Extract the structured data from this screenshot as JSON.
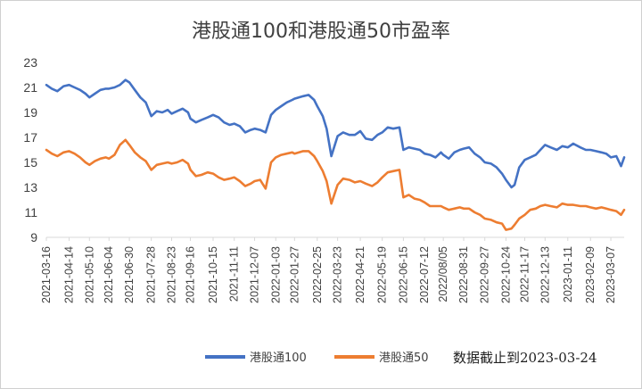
{
  "chart_data": {
    "type": "line",
    "title": "港股通100和港股通50市盈率",
    "xlabel": "",
    "ylabel": "",
    "ylim": [
      9,
      23
    ],
    "yticks": [
      9,
      11,
      13,
      15,
      17,
      19,
      21,
      23
    ],
    "grid": false,
    "legend_position": "bottom",
    "note": "数据截止到2023-03-24",
    "x_tick_labels": [
      "2021-03-16",
      "2021-04-14",
      "2021-05-10",
      "2021-06-04",
      "2021-06-30",
      "2021-07-28",
      "2021-08-23",
      "2021-09-16",
      "2021-10-15",
      "2021-11-11",
      "2021-12-07",
      "2022-01-03",
      "2022-01-27",
      "2022-02-25",
      "2022-03-23",
      "2022-04-21",
      "2022-05-19",
      "2022-06-15",
      "2022-07-12",
      "2022/08/05",
      "2022-08-31",
      "2022-09-27",
      "2022-10-24",
      "2022-11-17",
      "2022-12-13",
      "2023-01-11",
      "2023-02-09",
      "2023-03-07"
    ],
    "series": [
      {
        "name": "港股通100",
        "color": "#4472C4",
        "x": [
          "2021-03-16",
          "2021-03-23",
          "2021-03-30",
          "2021-04-07",
          "2021-04-14",
          "2021-04-21",
          "2021-04-28",
          "2021-05-05",
          "2021-05-10",
          "2021-05-17",
          "2021-05-24",
          "2021-05-31",
          "2021-06-04",
          "2021-06-11",
          "2021-06-18",
          "2021-06-25",
          "2021-06-30",
          "2021-07-07",
          "2021-07-14",
          "2021-07-21",
          "2021-07-28",
          "2021-08-04",
          "2021-08-11",
          "2021-08-18",
          "2021-08-23",
          "2021-08-30",
          "2021-09-06",
          "2021-09-13",
          "2021-09-16",
          "2021-09-23",
          "2021-09-30",
          "2021-10-08",
          "2021-10-15",
          "2021-10-22",
          "2021-10-29",
          "2021-11-05",
          "2021-11-11",
          "2021-11-18",
          "2021-11-25",
          "2021-12-02",
          "2021-12-07",
          "2021-12-14",
          "2021-12-21",
          "2021-12-28",
          "2022-01-03",
          "2022-01-10",
          "2022-01-17",
          "2022-01-24",
          "2022-01-27",
          "2022-02-07",
          "2022-02-14",
          "2022-02-21",
          "2022-02-25",
          "2022-03-04",
          "2022-03-09",
          "2022-03-15",
          "2022-03-23",
          "2022-03-30",
          "2022-04-07",
          "2022-04-14",
          "2022-04-21",
          "2022-04-28",
          "2022-05-06",
          "2022-05-13",
          "2022-05-19",
          "2022-05-26",
          "2022-06-02",
          "2022-06-10",
          "2022-06-15",
          "2022-06-22",
          "2022-06-29",
          "2022-07-06",
          "2022-07-12",
          "2022-07-19",
          "2022-07-26",
          "2022-08-02",
          "2022-08-05",
          "2022-08-12",
          "2022-08-19",
          "2022-08-26",
          "2022-08-31",
          "2022-09-07",
          "2022-09-14",
          "2022-09-21",
          "2022-09-27",
          "2022-10-05",
          "2022-10-12",
          "2022-10-19",
          "2022-10-24",
          "2022-10-31",
          "2022-11-04",
          "2022-11-10",
          "2022-11-17",
          "2022-11-24",
          "2022-12-01",
          "2022-12-07",
          "2022-12-13",
          "2022-12-20",
          "2022-12-28",
          "2023-01-04",
          "2023-01-11",
          "2023-01-18",
          "2023-01-27",
          "2023-02-03",
          "2023-02-09",
          "2023-02-16",
          "2023-02-23",
          "2023-03-01",
          "2023-03-07",
          "2023-03-14",
          "2023-03-20",
          "2023-03-24"
        ],
        "values": [
          21.2,
          20.9,
          20.7,
          21.1,
          21.2,
          21.0,
          20.8,
          20.5,
          20.2,
          20.5,
          20.8,
          20.9,
          20.9,
          21.0,
          21.2,
          21.6,
          21.4,
          20.8,
          20.2,
          19.8,
          18.7,
          19.1,
          19.0,
          19.2,
          18.9,
          19.1,
          19.3,
          19.0,
          18.5,
          18.2,
          18.4,
          18.6,
          18.8,
          18.6,
          18.2,
          18.0,
          18.1,
          17.9,
          17.4,
          17.6,
          17.7,
          17.6,
          17.4,
          18.8,
          19.2,
          19.5,
          19.8,
          20.0,
          20.1,
          20.3,
          20.4,
          20.0,
          19.5,
          18.7,
          17.7,
          15.5,
          17.1,
          17.4,
          17.2,
          17.2,
          17.5,
          16.9,
          16.8,
          17.2,
          17.4,
          17.8,
          17.7,
          17.8,
          16.0,
          16.2,
          16.1,
          16.0,
          15.7,
          15.6,
          15.4,
          15.8,
          15.6,
          15.3,
          15.8,
          16.0,
          16.1,
          16.2,
          15.7,
          15.4,
          15.0,
          14.9,
          14.6,
          14.1,
          13.6,
          13.0,
          13.2,
          14.6,
          15.2,
          15.4,
          15.6,
          16.0,
          16.4,
          16.2,
          16.0,
          16.3,
          16.2,
          16.5,
          16.2,
          16.0,
          16.0,
          15.9,
          15.8,
          15.7,
          15.4,
          15.5,
          14.7,
          15.4
        ]
      },
      {
        "name": "港股通50",
        "color": "#ED7D31",
        "x": [
          "2021-03-16",
          "2021-03-23",
          "2021-03-30",
          "2021-04-07",
          "2021-04-14",
          "2021-04-21",
          "2021-04-28",
          "2021-05-05",
          "2021-05-10",
          "2021-05-17",
          "2021-05-24",
          "2021-05-31",
          "2021-06-04",
          "2021-06-11",
          "2021-06-18",
          "2021-06-25",
          "2021-06-30",
          "2021-07-07",
          "2021-07-14",
          "2021-07-21",
          "2021-07-28",
          "2021-08-04",
          "2021-08-11",
          "2021-08-18",
          "2021-08-23",
          "2021-08-30",
          "2021-09-06",
          "2021-09-13",
          "2021-09-16",
          "2021-09-23",
          "2021-09-30",
          "2021-10-08",
          "2021-10-15",
          "2021-10-22",
          "2021-10-29",
          "2021-11-05",
          "2021-11-11",
          "2021-11-18",
          "2021-11-25",
          "2021-12-02",
          "2021-12-07",
          "2021-12-14",
          "2021-12-21",
          "2021-12-28",
          "2022-01-03",
          "2022-01-10",
          "2022-01-17",
          "2022-01-24",
          "2022-01-27",
          "2022-02-07",
          "2022-02-14",
          "2022-02-21",
          "2022-02-25",
          "2022-03-04",
          "2022-03-09",
          "2022-03-15",
          "2022-03-23",
          "2022-03-30",
          "2022-04-07",
          "2022-04-14",
          "2022-04-21",
          "2022-04-28",
          "2022-05-06",
          "2022-05-13",
          "2022-05-19",
          "2022-05-26",
          "2022-06-02",
          "2022-06-10",
          "2022-06-15",
          "2022-06-22",
          "2022-06-29",
          "2022-07-06",
          "2022-07-12",
          "2022-07-19",
          "2022-07-26",
          "2022-08-02",
          "2022-08-05",
          "2022-08-12",
          "2022-08-19",
          "2022-08-26",
          "2022-08-31",
          "2022-09-07",
          "2022-09-14",
          "2022-09-21",
          "2022-09-27",
          "2022-10-05",
          "2022-10-12",
          "2022-10-19",
          "2022-10-24",
          "2022-10-31",
          "2022-11-04",
          "2022-11-10",
          "2022-11-17",
          "2022-11-24",
          "2022-12-01",
          "2022-12-07",
          "2022-12-13",
          "2022-12-20",
          "2022-12-28",
          "2023-01-04",
          "2023-01-11",
          "2023-01-18",
          "2023-01-27",
          "2023-02-03",
          "2023-02-09",
          "2023-02-16",
          "2023-02-23",
          "2023-03-01",
          "2023-03-07",
          "2023-03-14",
          "2023-03-20",
          "2023-03-24"
        ],
        "values": [
          16.0,
          15.7,
          15.5,
          15.8,
          15.9,
          15.7,
          15.4,
          15.0,
          14.8,
          15.1,
          15.3,
          15.4,
          15.3,
          15.6,
          16.4,
          16.8,
          16.4,
          15.8,
          15.4,
          15.1,
          14.4,
          14.8,
          14.9,
          15.0,
          14.9,
          15.0,
          15.2,
          14.9,
          14.4,
          13.9,
          14.0,
          14.2,
          14.1,
          13.8,
          13.6,
          13.7,
          13.8,
          13.5,
          13.1,
          13.3,
          13.5,
          13.6,
          12.9,
          15.0,
          15.4,
          15.6,
          15.7,
          15.8,
          15.7,
          15.9,
          15.9,
          15.5,
          15.1,
          14.3,
          13.5,
          11.7,
          13.2,
          13.7,
          13.6,
          13.4,
          13.5,
          13.3,
          13.1,
          13.4,
          13.8,
          14.2,
          14.3,
          14.4,
          12.2,
          12.4,
          12.1,
          12.0,
          11.8,
          11.5,
          11.5,
          11.5,
          11.4,
          11.2,
          11.3,
          11.4,
          11.3,
          11.3,
          11.0,
          10.8,
          10.5,
          10.4,
          10.2,
          10.1,
          9.6,
          9.7,
          10.0,
          10.5,
          10.8,
          11.2,
          11.3,
          11.5,
          11.6,
          11.5,
          11.4,
          11.7,
          11.6,
          11.6,
          11.5,
          11.5,
          11.4,
          11.3,
          11.4,
          11.3,
          11.2,
          11.1,
          10.8,
          11.2
        ]
      }
    ]
  }
}
